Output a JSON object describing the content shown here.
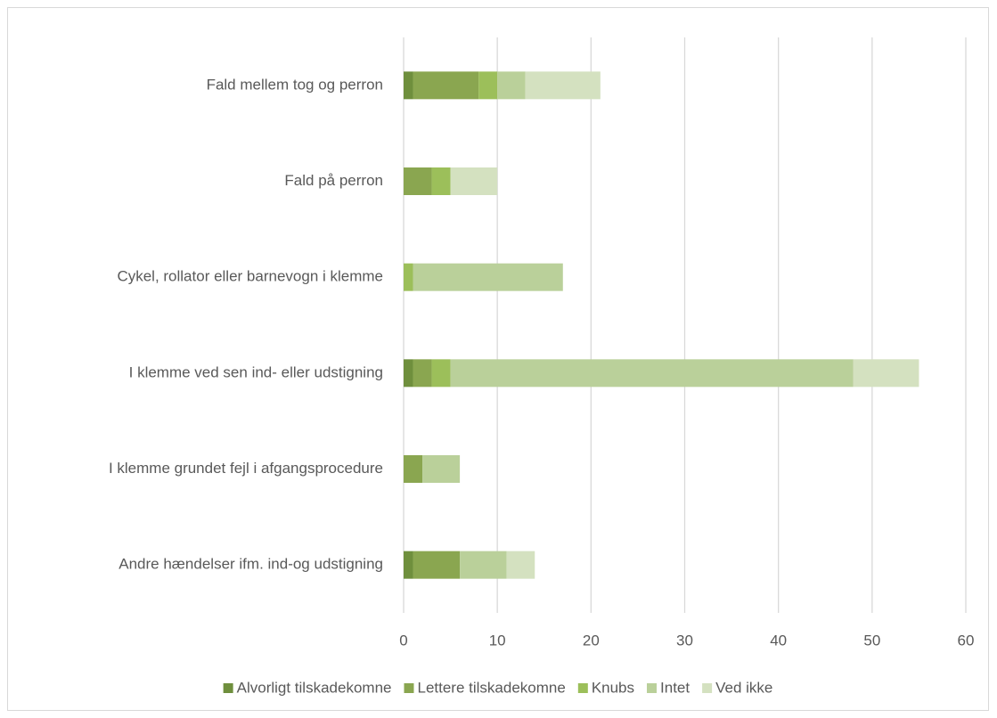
{
  "chart_data": {
    "type": "stacked_barh",
    "categories": [
      "Fald mellem tog og perron",
      "Fald på perron",
      "Cykel, rollator eller barnevogn i klemme",
      "I klemme ved sen ind- eller udstigning",
      "I klemme grundet fejl i afgangsprocedure",
      "Andre hændelser ifm. ind-og udstigning"
    ],
    "series": [
      {
        "name": "Alvorligt tilskadekomne",
        "color": "#6f8f3d",
        "values": [
          1,
          0,
          0,
          1,
          0,
          1
        ]
      },
      {
        "name": "Lettere tilskadekomne",
        "color": "#8aa650",
        "values": [
          7,
          3,
          0,
          2,
          2,
          5
        ]
      },
      {
        "name": "Knubs",
        "color": "#9cbf5a",
        "values": [
          2,
          2,
          1,
          2,
          0,
          0
        ]
      },
      {
        "name": "Intet",
        "color": "#bad09a",
        "values": [
          3,
          0,
          16,
          43,
          4,
          5
        ]
      },
      {
        "name": "Ved ikke",
        "color": "#d4e1c0",
        "values": [
          8,
          5,
          0,
          7,
          0,
          3
        ]
      }
    ],
    "xlim": [
      0,
      60
    ],
    "xticks": [
      0,
      10,
      20,
      30,
      40,
      50,
      60
    ],
    "grid": true,
    "legend": "bottom"
  }
}
